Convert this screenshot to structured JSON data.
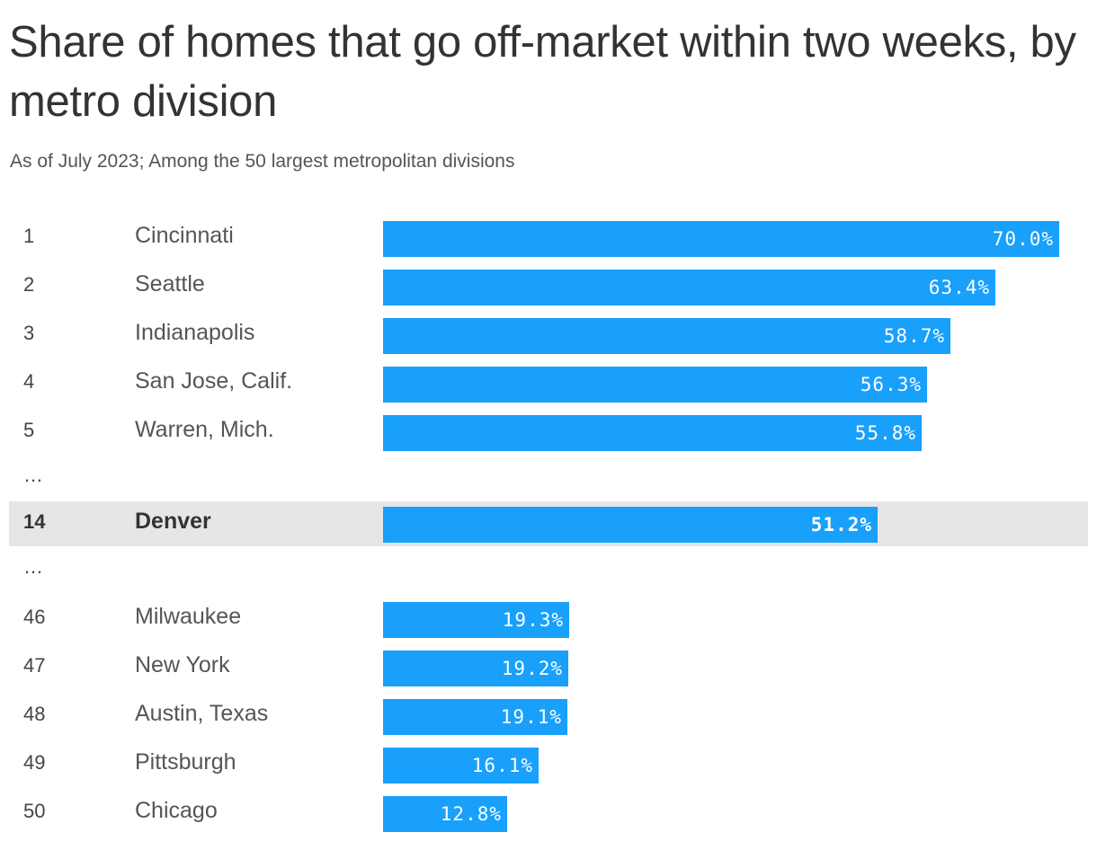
{
  "title": "Share of homes that go off-market within two weeks, by metro division",
  "subtitle": "As of July 2023; Among the 50 largest metropolitan divisions",
  "colors": {
    "bar": "#18a0fb",
    "highlight_row": "#e6e6e8",
    "text": "#333333"
  },
  "chart_data": {
    "type": "bar",
    "orientation": "horizontal",
    "title": "Share of homes that go off-market within two weeks, by metro division",
    "subtitle": "As of July 2023; Among the 50 largest metropolitan divisions",
    "xlim": [
      0,
      70
    ],
    "grid": false,
    "legend": "none",
    "highlight": "Denver",
    "rows": [
      {
        "rank": "1",
        "name": "Cincinnati",
        "value": 70.0,
        "label": "70.0%"
      },
      {
        "rank": "2",
        "name": "Seattle",
        "value": 63.4,
        "label": "63.4%"
      },
      {
        "rank": "3",
        "name": "Indianapolis",
        "value": 58.7,
        "label": "58.7%"
      },
      {
        "rank": "4",
        "name": "San Jose, Calif.",
        "value": 56.3,
        "label": "56.3%"
      },
      {
        "rank": "5",
        "name": "Warren, Mich.",
        "value": 55.8,
        "label": "55.8%"
      },
      {
        "rank": "…",
        "separator": true
      },
      {
        "rank": "14",
        "name": "Denver",
        "value": 51.2,
        "label": "51.2%",
        "highlight": true
      },
      {
        "rank": "…",
        "separator": true
      },
      {
        "rank": "46",
        "name": "Milwaukee",
        "value": 19.3,
        "label": "19.3%"
      },
      {
        "rank": "47",
        "name": "New York",
        "value": 19.2,
        "label": "19.2%"
      },
      {
        "rank": "48",
        "name": "Austin, Texas",
        "value": 19.1,
        "label": "19.1%"
      },
      {
        "rank": "49",
        "name": "Pittsburgh",
        "value": 16.1,
        "label": "16.1%"
      },
      {
        "rank": "50",
        "name": "Chicago",
        "value": 12.8,
        "label": "12.8%"
      }
    ]
  }
}
